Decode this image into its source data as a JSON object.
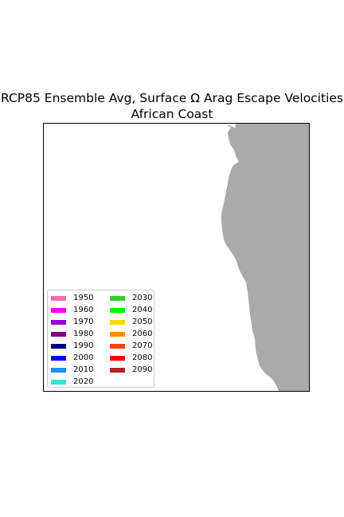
{
  "title": {
    "line1": "RCP85 Ensemble Avg, Surface Ω Arag Escape Velocities",
    "line2": "African Coast"
  },
  "map": {
    "land_color": "#aaaaaa",
    "ocean_color": "#ffffff"
  },
  "legend": {
    "column1": [
      {
        "label": "1950",
        "color": "#ff69b4"
      },
      {
        "label": "1960",
        "color": "#ff00ff"
      },
      {
        "label": "1970",
        "color": "#9400d3"
      },
      {
        "label": "1980",
        "color": "#800080"
      },
      {
        "label": "1990",
        "color": "#000080"
      },
      {
        "label": "2000",
        "color": "#0000ff"
      },
      {
        "label": "2010",
        "color": "#1e90ff"
      },
      {
        "label": "2020",
        "color": "#40e0d0"
      }
    ],
    "column2": [
      {
        "label": "2030",
        "color": "#32cd32"
      },
      {
        "label": "2040",
        "color": "#00ff00"
      },
      {
        "label": "2050",
        "color": "#ffd700"
      },
      {
        "label": "2060",
        "color": "#ff8c00"
      },
      {
        "label": "2070",
        "color": "#ff4500"
      },
      {
        "label": "2080",
        "color": "#ff0000"
      },
      {
        "label": "2090",
        "color": "#b22222"
      }
    ]
  }
}
